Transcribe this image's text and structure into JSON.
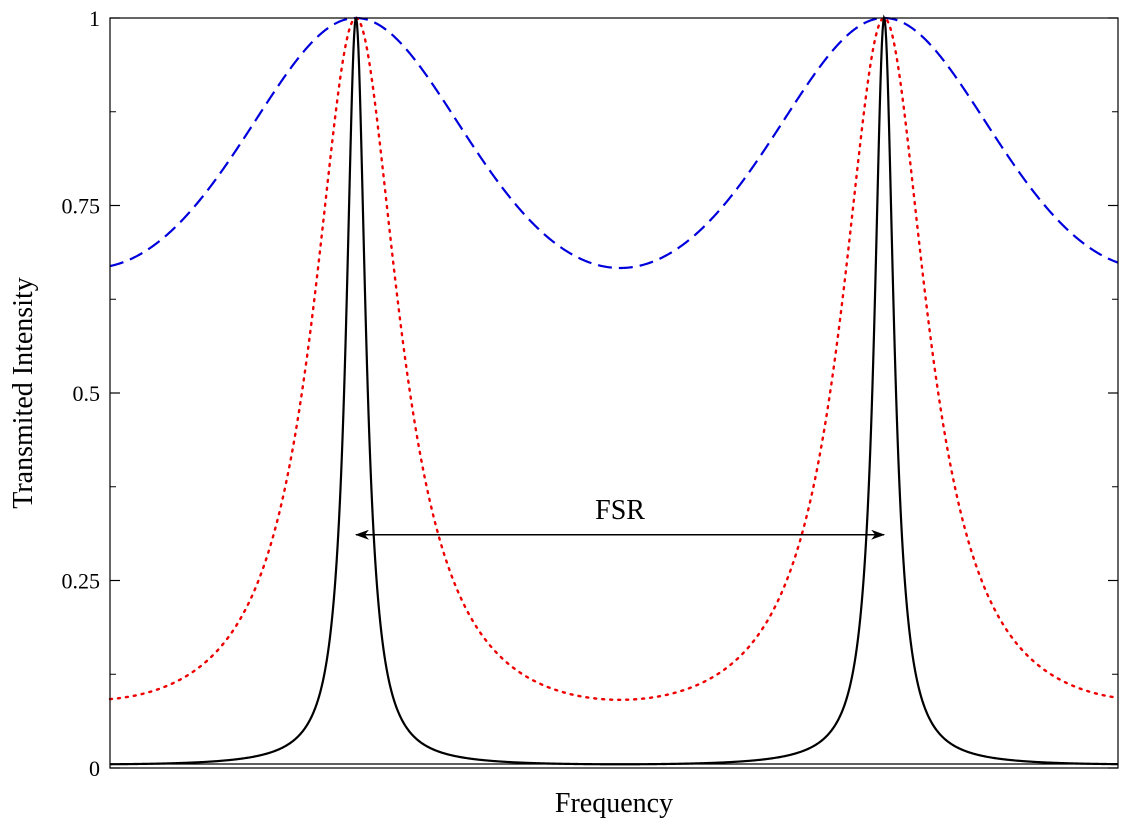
{
  "chart_data": {
    "type": "line",
    "title": "",
    "xlabel": "Frequency",
    "ylabel": "Transmited Intensity",
    "x_tick_labels": [],
    "y_ticks": [
      {
        "value": 0,
        "label": "0"
      },
      {
        "value": 0.25,
        "label": "0.25"
      },
      {
        "value": 0.5,
        "label": "0.5"
      },
      {
        "value": 0.75,
        "label": "0.75"
      },
      {
        "value": 1,
        "label": "1"
      }
    ],
    "ylim": [
      0,
      1
    ],
    "grid": false,
    "legend": "none",
    "resonance_peaks": [
      {
        "phase_fraction": 0.244,
        "transmission": 1
      },
      {
        "phase_fraction": 0.768,
        "transmission": 1
      }
    ],
    "series": [
      {
        "style": "dashed",
        "color": "#0000dd",
        "finesse_coefficient": 0.5,
        "max_transmission": 1,
        "min_transmission": 0.667
      },
      {
        "style": "dotted",
        "color": "#ee0000",
        "finesse_coefficient": 10,
        "max_transmission": 1,
        "min_transmission": 0.091
      },
      {
        "style": "solid",
        "color": "#000000",
        "finesse_coefficient": 200,
        "max_transmission": 1,
        "min_transmission": 0.005
      }
    ],
    "annotations": [
      {
        "text": "FSR",
        "type": "double-arrow",
        "from_peak": 0,
        "to_peak": 1,
        "y": 0.311
      }
    ]
  }
}
